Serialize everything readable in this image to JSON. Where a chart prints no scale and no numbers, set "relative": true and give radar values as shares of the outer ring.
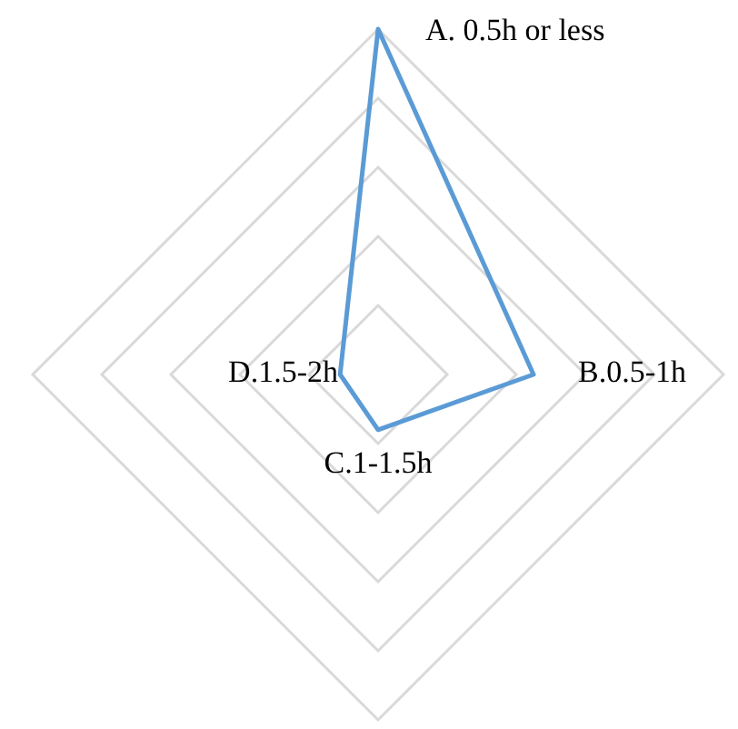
{
  "chart_data": {
    "type": "radar",
    "relative": true,
    "grid": true,
    "categories": [
      "A. 0.5h or less",
      "B.0.5-1h",
      "C.1-1.5h",
      "D.1.5-2h"
    ],
    "series": [
      {
        "color": "#5b9bd5",
        "values": [
          1,
          0.45,
          0.16,
          0.11
        ]
      }
    ]
  }
}
